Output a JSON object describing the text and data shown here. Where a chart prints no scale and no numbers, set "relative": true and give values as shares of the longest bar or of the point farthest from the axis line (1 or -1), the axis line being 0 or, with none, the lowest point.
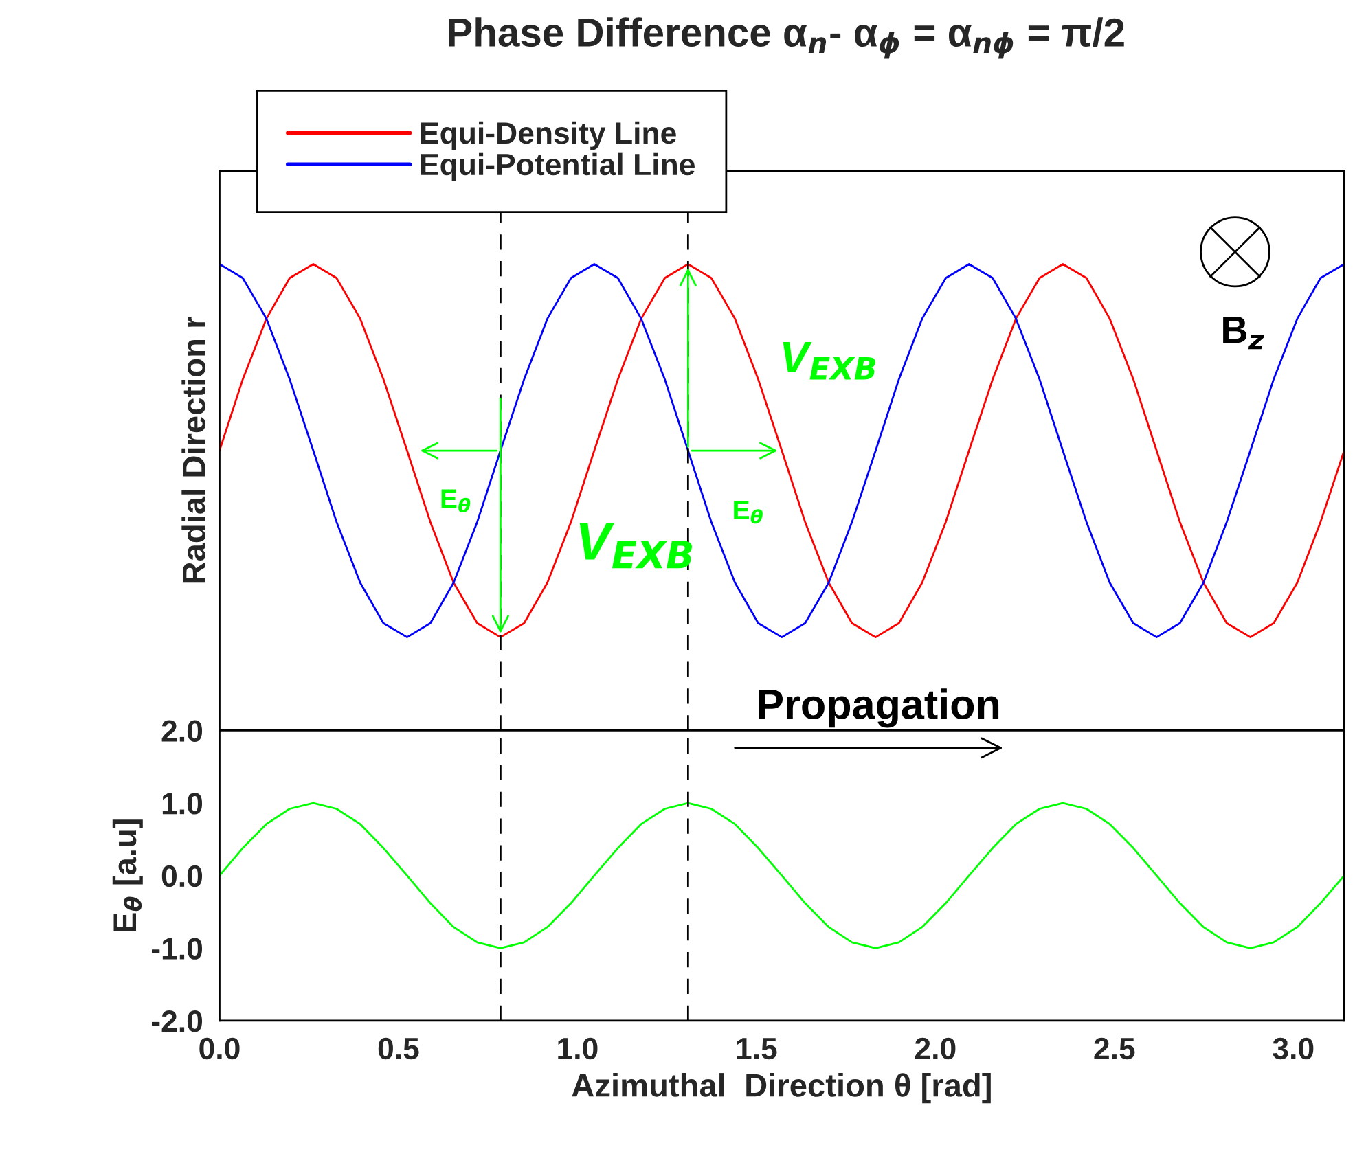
{
  "chart_data": [
    {
      "type": "line",
      "title": "Phase Difference α$_{n}$- α$_{ϕ}$ = α$_{nϕ}$ = π/2",
      "ylabel": "Radial Direction r",
      "relative": true,
      "legend": "top left",
      "tick_labels": false,
      "line_style": "solid",
      "xlim": [
        0,
        3.142
      ],
      "x": [
        0,
        0.065,
        0.131,
        0.196,
        0.262,
        0.327,
        0.393,
        0.458,
        0.524,
        0.589,
        0.654,
        0.72,
        0.785,
        0.851,
        0.916,
        0.982,
        1.047,
        1.113,
        1.178,
        1.244,
        1.309,
        1.374,
        1.44,
        1.505,
        1.571,
        1.636,
        1.702,
        1.767,
        1.833,
        1.898,
        1.963,
        2.029,
        2.094,
        2.16,
        2.225,
        2.291,
        2.356,
        2.422,
        2.487,
        2.553,
        2.618,
        2.683,
        2.749,
        2.814,
        2.88,
        2.945,
        3.011,
        3.076,
        3.142
      ],
      "series": [
        {
          "name": "Equi-Density Line",
          "color": "#ff0000",
          "values": [
            0.6,
            0.753,
            0.883,
            0.97,
            1.0,
            0.97,
            0.883,
            0.753,
            0.6,
            0.447,
            0.317,
            0.23,
            0.2,
            0.23,
            0.317,
            0.447,
            0.6,
            0.753,
            0.883,
            0.97,
            1.0,
            0.97,
            0.883,
            0.753,
            0.6,
            0.447,
            0.317,
            0.23,
            0.2,
            0.23,
            0.317,
            0.447,
            0.6,
            0.753,
            0.883,
            0.97,
            1.0,
            0.97,
            0.883,
            0.753,
            0.6,
            0.447,
            0.317,
            0.23,
            0.2,
            0.23,
            0.317,
            0.447,
            0.6
          ]
        },
        {
          "name": "Equi-Potential Line",
          "color": "#0000ff",
          "values": [
            1.0,
            0.97,
            0.883,
            0.753,
            0.6,
            0.447,
            0.317,
            0.23,
            0.2,
            0.23,
            0.317,
            0.447,
            0.6,
            0.753,
            0.883,
            0.97,
            1.0,
            0.97,
            0.883,
            0.753,
            0.6,
            0.447,
            0.317,
            0.23,
            0.2,
            0.23,
            0.317,
            0.447,
            0.6,
            0.753,
            0.883,
            0.97,
            1.0,
            0.97,
            0.883,
            0.753,
            0.6,
            0.447,
            0.317,
            0.23,
            0.2,
            0.23,
            0.317,
            0.447,
            0.6,
            0.753,
            0.883,
            0.97,
            1.0
          ]
        }
      ],
      "ref_lines": [
        {
          "axis": "x",
          "value": 0.785,
          "color": "#000000",
          "line_style": "dashed"
        },
        {
          "axis": "x",
          "value": 1.309,
          "color": "#000000",
          "line_style": "dashed"
        }
      ],
      "annotations": [
        "V$_{EXB}$",
        "E$_{θ}$",
        "V$_{EXB}$",
        "E$_{θ}$",
        "B$_{z}$",
        "Propagation"
      ]
    },
    {
      "type": "line",
      "xlabel": "Azimuthal  Direction θ [rad]",
      "ylabel": "E$_{θ}$ [a.u]",
      "line_style": "solid",
      "xlim": [
        0,
        3.142
      ],
      "xticks": [
        {
          "value": 0,
          "label": "0.0"
        },
        {
          "value": 0.5,
          "label": "0.5"
        },
        {
          "value": 1,
          "label": "1.0"
        },
        {
          "value": 1.5,
          "label": "1.5"
        },
        {
          "value": 2,
          "label": "2.0"
        },
        {
          "value": 2.5,
          "label": "2.5"
        },
        {
          "value": 3,
          "label": "3.0"
        }
      ],
      "ylim": [
        -2,
        2
      ],
      "yticks": [
        {
          "value": -2,
          "label": "-2.0"
        },
        {
          "value": -1,
          "label": "-1.0"
        },
        {
          "value": 0,
          "label": "0.0"
        },
        {
          "value": 1,
          "label": "1.0"
        },
        {
          "value": 2,
          "label": "2.0"
        }
      ],
      "x": [
        0,
        0.065,
        0.131,
        0.196,
        0.262,
        0.327,
        0.393,
        0.458,
        0.524,
        0.589,
        0.654,
        0.72,
        0.785,
        0.851,
        0.916,
        0.982,
        1.047,
        1.113,
        1.178,
        1.244,
        1.309,
        1.374,
        1.44,
        1.505,
        1.571,
        1.636,
        1.702,
        1.767,
        1.833,
        1.898,
        1.963,
        2.029,
        2.094,
        2.16,
        2.225,
        2.291,
        2.356,
        2.422,
        2.487,
        2.553,
        2.618,
        2.683,
        2.749,
        2.814,
        2.88,
        2.945,
        3.011,
        3.076,
        3.142
      ],
      "series": [
        {
          "color": "#00ff00",
          "values": [
            0,
            0.38,
            0.71,
            0.92,
            1,
            0.92,
            0.71,
            0.38,
            0,
            -0.38,
            -0.71,
            -0.92,
            -1,
            -0.92,
            -0.71,
            -0.38,
            0,
            0.38,
            0.71,
            0.92,
            1,
            0.92,
            0.71,
            0.38,
            0,
            -0.38,
            -0.71,
            -0.92,
            -1,
            -0.92,
            -0.71,
            -0.38,
            0,
            0.38,
            0.71,
            0.92,
            1,
            0.92,
            0.71,
            0.38,
            0,
            -0.38,
            -0.71,
            -0.92,
            -1,
            -0.92,
            -0.71,
            -0.38,
            0
          ]
        }
      ],
      "ref_lines": [
        {
          "axis": "x",
          "value": 0.785,
          "color": "#000000",
          "line_style": "dashed"
        },
        {
          "axis": "x",
          "value": 1.309,
          "color": "#000000",
          "line_style": "dashed"
        }
      ]
    }
  ]
}
